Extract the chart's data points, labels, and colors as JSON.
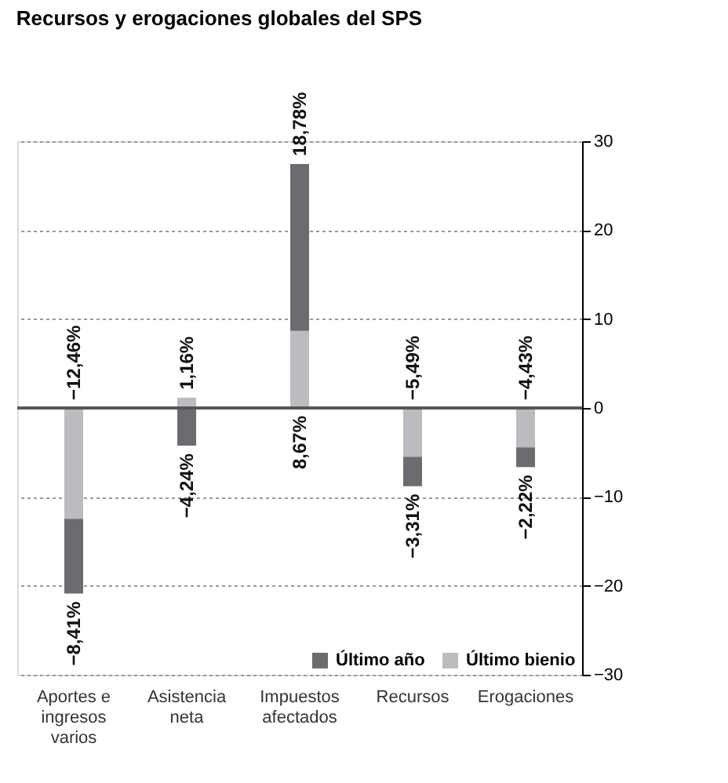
{
  "chart_data": {
    "type": "bar",
    "stacked": true,
    "title": "Recursos y erogaciones globales del SPS",
    "categories": [
      "Aportes e ingresos varios",
      "Asistencia neta",
      "Impuestos afectados",
      "Recursos",
      "Erogaciones"
    ],
    "series": [
      {
        "name": "Último bienio",
        "color": "#bbbcbf",
        "values": [
          -12.46,
          1.16,
          8.67,
          -5.49,
          -4.43
        ],
        "value_labels": [
          "−12,46%",
          "1,16%",
          "8,67%",
          "−5,49%",
          "−4,43%"
        ]
      },
      {
        "name": "Último año",
        "color": "#6b6c70",
        "values": [
          -8.41,
          -4.24,
          18.78,
          -3.31,
          -2.22
        ],
        "value_labels": [
          "−8,41%",
          "−4,24%",
          "18,78%",
          "−3,31%",
          "−2,22%"
        ]
      }
    ],
    "ylim": [
      -30,
      30
    ],
    "yticks": [
      -30,
      -20,
      -10,
      0,
      10,
      20,
      30
    ],
    "grid": "y",
    "legend": "bottom right"
  }
}
